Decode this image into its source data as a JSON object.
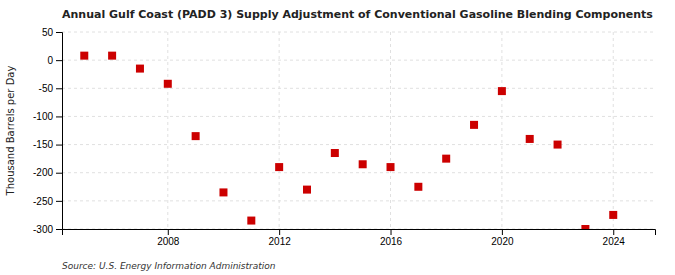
{
  "chart_data": {
    "type": "scatter",
    "title": "Annual Gulf Coast (PADD 3) Supply Adjustment of Conventional Gasoline Blending Components",
    "ylabel": "Thousand Barrels per Day",
    "annotations": [
      "Source: U.S. Energy Information Administration"
    ],
    "x": [
      2005,
      2006,
      2007,
      2008,
      2009,
      2010,
      2011,
      2012,
      2013,
      2014,
      2015,
      2016,
      2017,
      2018,
      2019,
      2020,
      2021,
      2022,
      2023,
      2024
    ],
    "values": [
      8,
      8,
      -15,
      -42,
      -135,
      -235,
      -285,
      -190,
      -230,
      -165,
      -185,
      -190,
      -225,
      -175,
      -115,
      -55,
      -140,
      -150,
      -300,
      -275
    ],
    "color": "#cc0000",
    "marker": "square",
    "xlim": [
      2004.2,
      2025.5
    ],
    "xticks": [
      2008,
      2012,
      2016,
      2020,
      2024
    ],
    "ylim": [
      -300,
      50
    ],
    "yticks": [
      50,
      0,
      -50,
      -100,
      -150,
      -200,
      -250,
      -300
    ],
    "grid": true
  }
}
